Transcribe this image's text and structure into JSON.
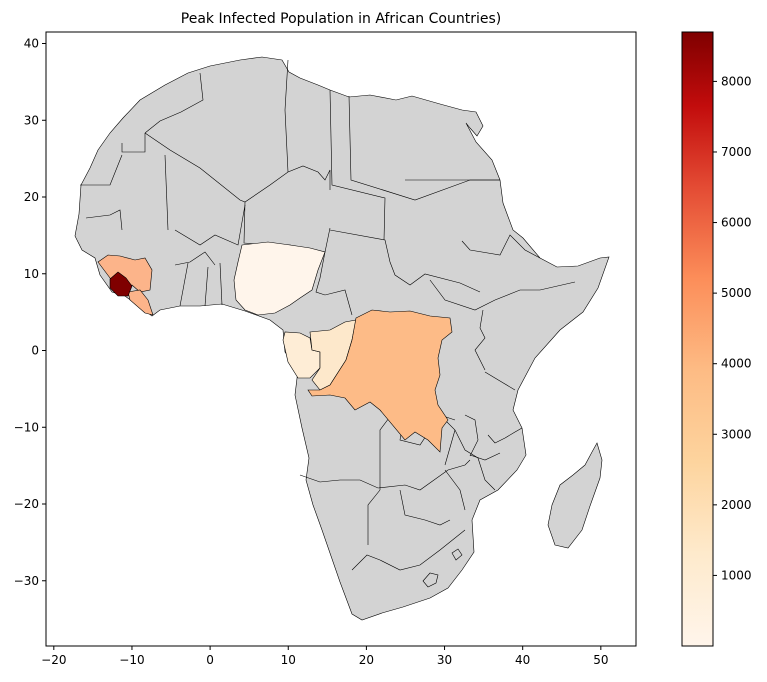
{
  "title": "Peak Infected Population in African Countries)",
  "map": {
    "xlim": [
      -21,
      54.5
    ],
    "ylim": [
      -38.5,
      41.5
    ],
    "x_ticks": [
      -20,
      -10,
      0,
      10,
      20,
      30,
      40,
      50
    ],
    "y_ticks": [
      -30,
      -20,
      -10,
      0,
      10,
      20,
      30,
      40
    ],
    "base_color": "#d3d3d3",
    "border_color": "#000000"
  },
  "colorbar": {
    "min": 0,
    "max": 8700,
    "ticks": [
      1000,
      2000,
      3000,
      4000,
      5000,
      6000,
      7000,
      8000
    ],
    "colormap": "OrRd"
  },
  "highlighted_countries": [
    {
      "name": "Sierra Leone",
      "value": 8700
    },
    {
      "name": "Guinea",
      "value": 3200
    },
    {
      "name": "Liberia",
      "value": 3200
    },
    {
      "name": "Democratic Republic of the Congo",
      "value": 3100
    },
    {
      "name": "Republic of the Congo",
      "value": 350
    },
    {
      "name": "Gabon",
      "value": 300
    },
    {
      "name": "Nigeria",
      "value": 50
    }
  ]
}
